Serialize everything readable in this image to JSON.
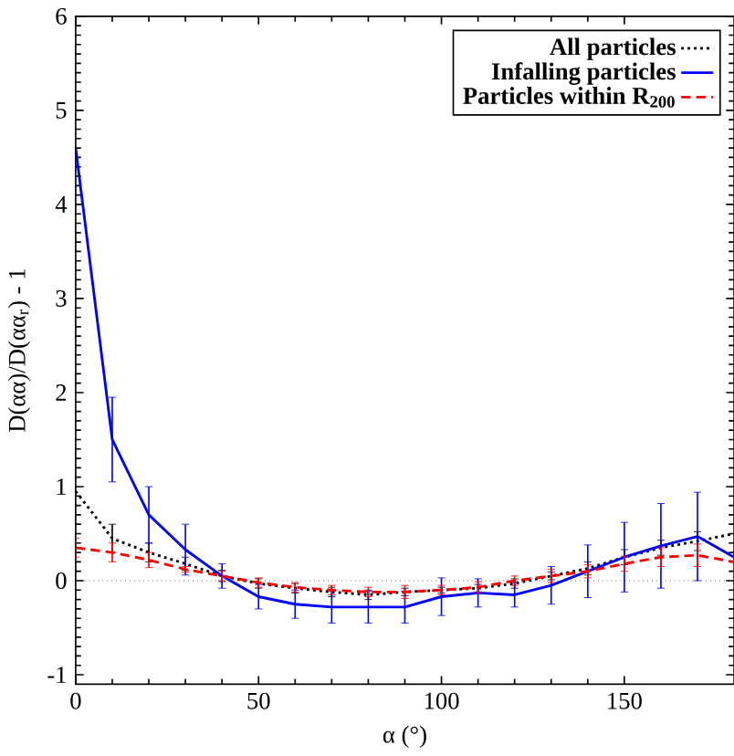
{
  "chart_data": {
    "type": "line",
    "xlabel": "α (°)",
    "ylabel": "D(αα)/D(αα$_{r}$) - 1",
    "x": [
      0,
      10,
      20,
      30,
      40,
      50,
      60,
      70,
      80,
      90,
      100,
      110,
      120,
      130,
      140,
      150,
      160,
      170,
      180
    ],
    "series": [
      {
        "name": "All particles",
        "color": "#000000",
        "line_style": "dotted",
        "values": [
          0.95,
          0.45,
          0.3,
          0.18,
          0.05,
          -0.03,
          -0.08,
          -0.12,
          -0.15,
          -0.12,
          -0.1,
          -0.08,
          -0.03,
          0.05,
          0.13,
          0.25,
          0.35,
          0.42,
          0.5
        ],
        "errors": [
          null,
          0.15,
          0.1,
          0.07,
          0.06,
          0.05,
          0.05,
          0.05,
          0.05,
          0.04,
          0.03,
          0.04,
          0.05,
          0.04,
          0.07,
          0.08,
          0.08,
          0.1,
          null
        ]
      },
      {
        "name": "Infalling particles",
        "color": "#0000ff",
        "line_style": "solid",
        "values": [
          4.6,
          1.5,
          0.7,
          0.33,
          0.05,
          -0.17,
          -0.25,
          -0.28,
          -0.28,
          -0.28,
          -0.17,
          -0.13,
          -0.15,
          -0.05,
          0.1,
          0.25,
          0.37,
          0.47,
          0.25
        ],
        "errors": [
          null,
          0.45,
          0.3,
          0.27,
          0.13,
          0.13,
          0.15,
          0.17,
          0.17,
          0.17,
          0.2,
          0.15,
          0.13,
          0.2,
          0.28,
          0.37,
          0.45,
          0.47,
          null
        ]
      },
      {
        "name": "Particles within R$_{200}$",
        "color": "#ff0000",
        "line_style": "dashed",
        "values": [
          0.35,
          0.3,
          0.22,
          0.12,
          0.05,
          -0.02,
          -0.07,
          -0.1,
          -0.12,
          -0.12,
          -0.1,
          -0.07,
          0.0,
          0.05,
          0.1,
          0.18,
          0.25,
          0.27,
          0.2
        ],
        "errors": [
          0.1,
          0.1,
          0.08,
          0.03,
          0.05,
          0.05,
          0.05,
          0.05,
          0.05,
          0.07,
          0.05,
          0.06,
          0.05,
          0.07,
          0.07,
          0.08,
          0.1,
          0.12,
          null
        ]
      }
    ],
    "ref_lines": [
      {
        "axis": "y",
        "value": 0,
        "color": "#000000",
        "line_style": "dotted"
      }
    ],
    "xlim": [
      0,
      180
    ],
    "ylim": [
      -1.1,
      6
    ],
    "xticks": [
      0,
      50,
      100,
      150
    ],
    "yticks": [
      -1,
      0,
      1,
      2,
      3,
      4,
      5,
      6
    ],
    "grid": false,
    "legend": "top right",
    "marker": "none"
  }
}
